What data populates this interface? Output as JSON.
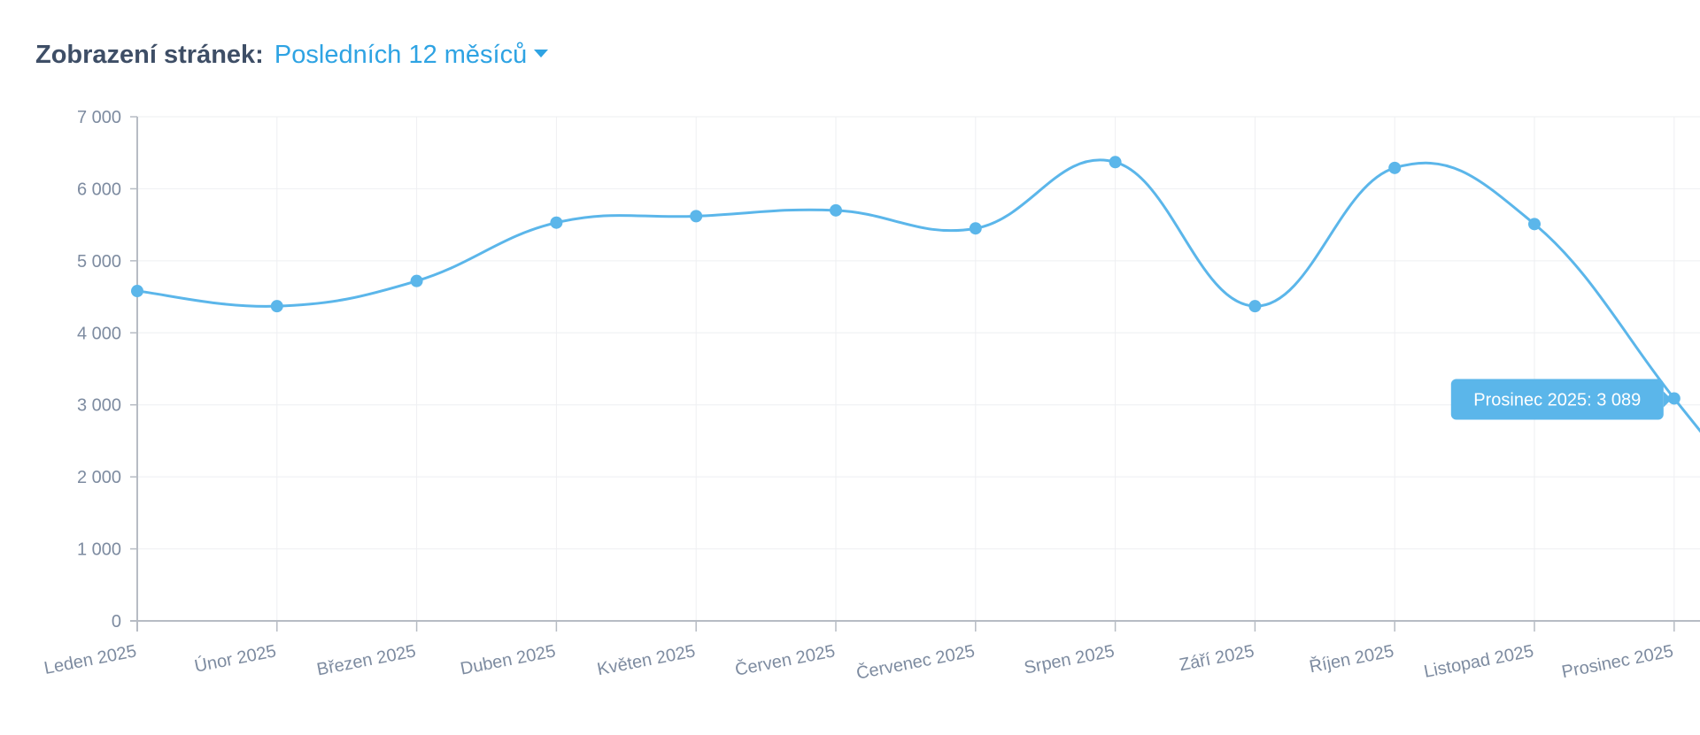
{
  "header": {
    "label": "Zobrazení stránek:",
    "period": "Posledních 12 měsíců"
  },
  "colors": {
    "line": "#5bb6ea",
    "accent": "#2ea3e3",
    "grid": "#eeeff2",
    "axis": "#b7bcc4"
  },
  "tooltip": {
    "text": "Prosinec 2025: 3 089"
  },
  "chart_data": {
    "type": "line",
    "categories": [
      "Leden 2025",
      "Únor 2025",
      "Březen 2025",
      "Duben 2025",
      "Květen 2025",
      "Červen 2025",
      "Červenec 2025",
      "Srpen 2025",
      "Září 2025",
      "Říjen 2025",
      "Listopad 2025",
      "Prosinec 2025"
    ],
    "series": [
      {
        "values": [
          4580,
          4370,
          4720,
          5530,
          5620,
          5700,
          5450,
          6370,
          4370,
          6290,
          5510,
          3089
        ]
      }
    ],
    "ylim": [
      0,
      7000
    ],
    "yticks": [
      0,
      1000,
      2000,
      3000,
      4000,
      5000,
      6000,
      7000
    ],
    "ytick_labels": [
      "0",
      "1 000",
      "2 000",
      "3 000",
      "4 000",
      "5 000",
      "6 000",
      "7 000"
    ],
    "grid": true,
    "title": "",
    "xlabel": "",
    "ylabel": ""
  }
}
